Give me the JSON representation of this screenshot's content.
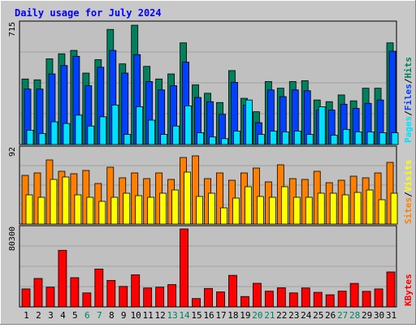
{
  "title": "Daily usage for July 2024",
  "colors": {
    "hits": "#00805c",
    "files": "#0040ff",
    "pages": "#00e0ff",
    "visits": "#ffff00",
    "sites": "#ff8000",
    "kbytes": "#ff0000",
    "weekend_label": "#00805c",
    "title": "#0000ff",
    "plot_bg": "#c0c0c0",
    "frame_bg": "#c8c8c8"
  },
  "chart_data": [
    {
      "type": "bar",
      "panel": "hits-files-pages",
      "categories": [
        "1",
        "2",
        "3",
        "4",
        "5",
        "6",
        "7",
        "8",
        "9",
        "10",
        "11",
        "12",
        "13",
        "14",
        "15",
        "16",
        "17",
        "18",
        "19",
        "20",
        "21",
        "22",
        "23",
        "24",
        "25",
        "26",
        "27",
        "28",
        "29",
        "30",
        "31"
      ],
      "weekend_days": [
        "6",
        "7",
        "13",
        "14",
        "20",
        "21",
        "27",
        "28"
      ],
      "ymax_label": "715",
      "ylim": [
        0,
        715
      ],
      "legend": [
        {
          "key": "pages",
          "label": "Pages"
        },
        {
          "key": "files",
          "label": "Files"
        },
        {
          "key": "hits",
          "label": "Hits"
        }
      ],
      "separator": "/",
      "series": [
        {
          "name": "Hits",
          "key": "hits",
          "values": [
            390,
            385,
            510,
            540,
            560,
            425,
            505,
            685,
            480,
            710,
            465,
            390,
            420,
            605,
            355,
            305,
            250,
            440,
            275,
            195,
            375,
            335,
            375,
            380,
            265,
            255,
            295,
            260,
            335,
            335,
            605
          ]
        },
        {
          "name": "Files",
          "key": "files",
          "values": [
            330,
            330,
            420,
            470,
            525,
            350,
            460,
            560,
            425,
            535,
            375,
            325,
            350,
            490,
            280,
            255,
            180,
            370,
            235,
            130,
            325,
            285,
            325,
            320,
            205,
            205,
            240,
            215,
            245,
            265,
            555
          ]
        },
        {
          "name": "Pages",
          "key": "pages",
          "values": [
            85,
            65,
            135,
            125,
            175,
            110,
            165,
            235,
            60,
            225,
            145,
            60,
            110,
            230,
            70,
            45,
            35,
            80,
            265,
            60,
            80,
            75,
            80,
            60,
            225,
            55,
            90,
            75,
            75,
            70,
            70
          ]
        }
      ]
    },
    {
      "type": "bar",
      "panel": "visits-sites",
      "categories": [
        "1",
        "2",
        "3",
        "4",
        "5",
        "6",
        "7",
        "8",
        "9",
        "10",
        "11",
        "12",
        "13",
        "14",
        "15",
        "16",
        "17",
        "18",
        "19",
        "20",
        "21",
        "22",
        "23",
        "24",
        "25",
        "26",
        "27",
        "28",
        "29",
        "30",
        "31"
      ],
      "ymax_label": "92",
      "ylim": [
        0,
        92
      ],
      "legend": [
        {
          "key": "sites",
          "label": "Sites"
        },
        {
          "key": "visits",
          "label": "Visits"
        }
      ],
      "separator": "/",
      "series": [
        {
          "name": "Sites",
          "key": "sites",
          "values": [
            60,
            63,
            79,
            65,
            62,
            66,
            50,
            70,
            57,
            63,
            56,
            63,
            55,
            82,
            84,
            56,
            63,
            54,
            63,
            69,
            52,
            73,
            56,
            55,
            65,
            51,
            54,
            59,
            57,
            63,
            76
          ]
        },
        {
          "name": "Visits",
          "key": "visits",
          "values": [
            36,
            33,
            55,
            58,
            36,
            33,
            28,
            33,
            38,
            35,
            33,
            38,
            42,
            64,
            34,
            38,
            20,
            32,
            46,
            34,
            33,
            46,
            33,
            33,
            38,
            38,
            36,
            39,
            42,
            30,
            38
          ]
        }
      ]
    },
    {
      "type": "bar",
      "panel": "kbytes",
      "categories": [
        "1",
        "2",
        "3",
        "4",
        "5",
        "6",
        "7",
        "8",
        "9",
        "10",
        "11",
        "12",
        "13",
        "14",
        "15",
        "16",
        "17",
        "18",
        "19",
        "20",
        "21",
        "22",
        "23",
        "24",
        "25",
        "26",
        "27",
        "28",
        "29",
        "30",
        "31"
      ],
      "ymax_label": "80300",
      "ylim": [
        0,
        80300
      ],
      "legend": [
        {
          "key": "kbytes",
          "label": "KBytes"
        }
      ],
      "series": [
        {
          "name": "KBytes",
          "key": "kbytes",
          "values": [
            18500,
            29300,
            20300,
            58300,
            30100,
            14400,
            39000,
            27300,
            21100,
            33100,
            19500,
            20300,
            23000,
            80300,
            8600,
            19000,
            15400,
            32500,
            10700,
            24300,
            16200,
            19700,
            14400,
            19500,
            15000,
            12500,
            16200,
            24200,
            16000,
            18500,
            36000
          ]
        }
      ]
    }
  ]
}
